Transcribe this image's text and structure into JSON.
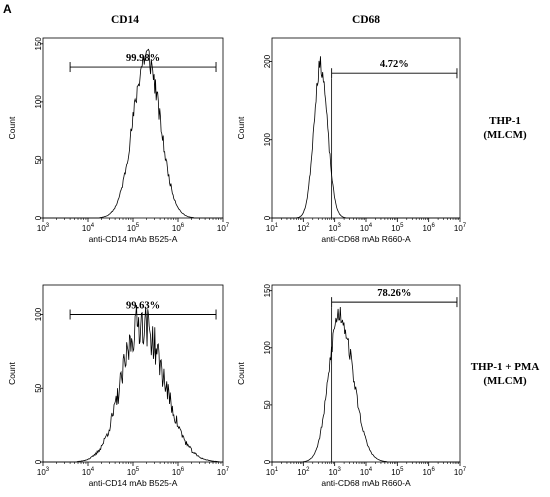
{
  "figure": {
    "panel_letter": "A",
    "column_headers": [
      "CD14",
      "CD68"
    ],
    "row_labels": [
      {
        "line1": "THP-1",
        "line2": "(MLCM)"
      },
      {
        "line1": "THP-1 + PMA",
        "line2": "(MLCM)"
      }
    ]
  },
  "chart_data": [
    {
      "type": "area",
      "column": "CD14",
      "row": "THP-1 (MLCM)",
      "xlabel": "anti-CD14 mAb B525-A",
      "ylabel": "Count",
      "xscale": "log",
      "xlim": [
        1000,
        10000000
      ],
      "ylim": [
        0,
        155
      ],
      "xticks": [
        {
          "v": 1000,
          "b": "10",
          "e": "3"
        },
        {
          "v": 10000,
          "b": "10",
          "e": "4"
        },
        {
          "v": 100000,
          "b": "10",
          "e": "5"
        },
        {
          "v": 1000000,
          "b": "10",
          "e": "6"
        },
        {
          "v": 10000000,
          "b": "10",
          "e": "7"
        }
      ],
      "yticks": [
        0,
        50,
        100,
        150
      ],
      "histogram": {
        "peak_x": 200000,
        "peak_y": 140,
        "sigma_decades": 0.3,
        "skew": 0,
        "jitter": 0.09,
        "seed": 11
      },
      "gate": {
        "label": "99.98%",
        "x_from": 4000,
        "x_to": 7000000,
        "y": 130,
        "marker_line": false
      }
    },
    {
      "type": "area",
      "column": "CD68",
      "row": "THP-1 (MLCM)",
      "xlabel": "anti-CD68 mAb R660-A",
      "ylabel": "Count",
      "xscale": "log",
      "xlim": [
        10,
        10000000
      ],
      "ylim": [
        0,
        230
      ],
      "xticks": [
        {
          "v": 10,
          "b": "10",
          "e": "1"
        },
        {
          "v": 100,
          "b": "10",
          "e": "2"
        },
        {
          "v": 1000,
          "b": "10",
          "e": "3"
        },
        {
          "v": 10000,
          "b": "10",
          "e": "4"
        },
        {
          "v": 100000,
          "b": "10",
          "e": "5"
        },
        {
          "v": 1000000,
          "b": "10",
          "e": "6"
        },
        {
          "v": 10000000,
          "b": "10",
          "e": "7"
        }
      ],
      "yticks": [
        0,
        100,
        200
      ],
      "histogram": {
        "peak_x": 350,
        "peak_y": 195,
        "sigma_decades": 0.21,
        "skew": 0.02,
        "jitter": 0.06,
        "seed": 23
      },
      "gate": {
        "label": "4.72%",
        "x_from": 800,
        "x_to": 8000000,
        "y": 185,
        "marker_line": true
      }
    },
    {
      "type": "area",
      "column": "CD14",
      "row": "THP-1 + PMA (MLCM)",
      "xlabel": "anti-CD14 mAb B525-A",
      "ylabel": "Count",
      "xscale": "log",
      "xlim": [
        1000,
        10000000
      ],
      "ylim": [
        0,
        120
      ],
      "xticks": [
        {
          "v": 1000,
          "b": "10",
          "e": "3"
        },
        {
          "v": 10000,
          "b": "10",
          "e": "4"
        },
        {
          "v": 100000,
          "b": "10",
          "e": "5"
        },
        {
          "v": 1000000,
          "b": "10",
          "e": "6"
        },
        {
          "v": 10000000,
          "b": "10",
          "e": "7"
        }
      ],
      "yticks": [
        0,
        50,
        100
      ],
      "histogram": {
        "peak_x": 150000,
        "peak_y": 95,
        "sigma_decades": 0.42,
        "skew": 0.05,
        "jitter": 0.16,
        "seed": 37
      },
      "gate": {
        "label": "99.63%",
        "x_from": 4000,
        "x_to": 7000000,
        "y": 100,
        "marker_line": false
      }
    },
    {
      "type": "area",
      "column": "CD68",
      "row": "THP-1 + PMA (MLCM)",
      "xlabel": "anti-CD68 mAb R660-A",
      "ylabel": "Count",
      "xscale": "log",
      "xlim": [
        10,
        10000000
      ],
      "ylim": [
        0,
        155
      ],
      "xticks": [
        {
          "v": 10,
          "b": "10",
          "e": "1"
        },
        {
          "v": 100,
          "b": "10",
          "e": "2"
        },
        {
          "v": 1000,
          "b": "10",
          "e": "3"
        },
        {
          "v": 10000,
          "b": "10",
          "e": "4"
        },
        {
          "v": 100000,
          "b": "10",
          "e": "5"
        },
        {
          "v": 1000000,
          "b": "10",
          "e": "6"
        },
        {
          "v": 10000000,
          "b": "10",
          "e": "7"
        }
      ],
      "yticks": [
        0,
        50,
        100,
        150
      ],
      "histogram": {
        "peak_x": 1400,
        "peak_y": 130,
        "sigma_decades": 0.33,
        "skew": 0.08,
        "jitter": 0.08,
        "seed": 53
      },
      "gate": {
        "label": "78.26%",
        "x_from": 800,
        "x_to": 8000000,
        "y": 140,
        "marker_line": true
      }
    }
  ]
}
